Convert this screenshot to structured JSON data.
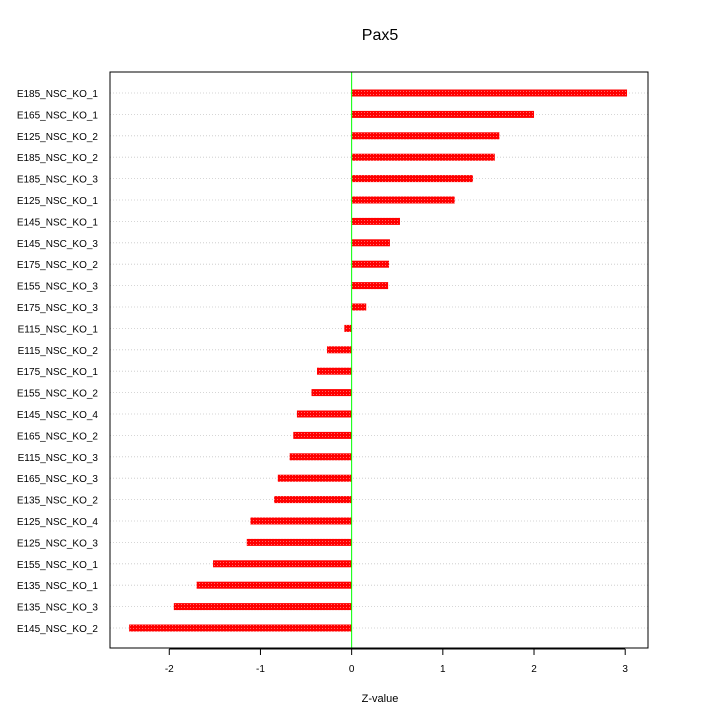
{
  "chart_data": {
    "type": "bar",
    "orientation": "horizontal",
    "title": "Pax5",
    "xlabel": "Z-value",
    "ylabel": "",
    "xlim": [
      -2.65,
      3.25
    ],
    "xticks": [
      "-2",
      "-1",
      "0",
      "1",
      "2",
      "3"
    ],
    "xtick_values": [
      -2,
      -1,
      0,
      1,
      2,
      3
    ],
    "reference_line": 0,
    "grid": "horizontal dotted",
    "categories": [
      "E185_NSC_KO_1",
      "E165_NSC_KO_1",
      "E125_NSC_KO_2",
      "E185_NSC_KO_2",
      "E185_NSC_KO_3",
      "E125_NSC_KO_1",
      "E145_NSC_KO_1",
      "E145_NSC_KO_3",
      "E175_NSC_KO_2",
      "E155_NSC_KO_3",
      "E175_NSC_KO_3",
      "E115_NSC_KO_1",
      "E115_NSC_KO_2",
      "E175_NSC_KO_1",
      "E155_NSC_KO_2",
      "E145_NSC_KO_4",
      "E165_NSC_KO_2",
      "E115_NSC_KO_3",
      "E165_NSC_KO_3",
      "E135_NSC_KO_2",
      "E125_NSC_KO_4",
      "E125_NSC_KO_3",
      "E155_NSC_KO_1",
      "E135_NSC_KO_1",
      "E135_NSC_KO_3",
      "E145_NSC_KO_2"
    ],
    "values": [
      3.02,
      2.0,
      1.62,
      1.57,
      1.33,
      1.13,
      0.53,
      0.42,
      0.41,
      0.4,
      0.16,
      -0.08,
      -0.27,
      -0.38,
      -0.44,
      -0.6,
      -0.64,
      -0.68,
      -0.81,
      -0.85,
      -1.11,
      -1.15,
      -1.52,
      -1.7,
      -1.95,
      -2.44
    ],
    "colors": {
      "bar": "#ff0000",
      "bar_fill_pattern": "#ff5a5a",
      "zero_line": "#00ff00",
      "grid": "#c8c8c8",
      "frame": "#000000"
    }
  }
}
